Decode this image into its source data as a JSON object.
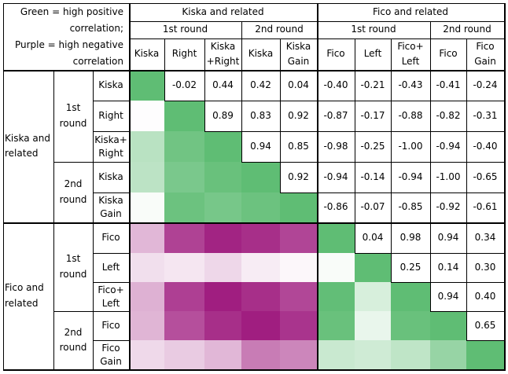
{
  "legend": {
    "line1": "Green = high positive",
    "line2": "correlation;",
    "line3": "Purple = high negative",
    "line4": "correlation"
  },
  "groups": [
    {
      "label": "Kiska and related",
      "rounds": [
        {
          "label": "1st\nround",
          "vars": [
            "Kiska",
            "Right",
            "Kiska\n+Right"
          ]
        },
        {
          "label": "2nd\nround",
          "vars": [
            "Kiska",
            "Kiska\nGain"
          ]
        }
      ]
    },
    {
      "label": "Fico and related",
      "rounds": [
        {
          "label": "1st\nround",
          "vars": [
            "Fico",
            "Left",
            "Fico+\nLeft"
          ]
        },
        {
          "label": "2nd\nround",
          "vars": [
            "Fico",
            "Fico\nGain"
          ]
        }
      ]
    }
  ],
  "rows": [
    {
      "group": "Kiska and\nrelated",
      "round": "1st\nround",
      "label": "Kiska",
      "values": [
        1.0,
        -0.02,
        0.44,
        0.42,
        0.04,
        -0.4,
        -0.21,
        -0.43,
        -0.41,
        -0.24
      ],
      "labels": [
        "",
        "-0.02",
        "0.44",
        "0.42",
        "0.04",
        "-0.40",
        "-0.21",
        "-0.43",
        "-0.41",
        "-0.24"
      ]
    },
    {
      "label": "Right",
      "values": [
        -0.02,
        1.0,
        0.89,
        0.83,
        0.92,
        -0.87,
        -0.17,
        -0.88,
        -0.82,
        -0.31
      ],
      "labels": [
        "",
        "",
        "0.89",
        "0.83",
        "0.92",
        "-0.87",
        "-0.17",
        "-0.88",
        "-0.82",
        "-0.31"
      ]
    },
    {
      "label": "Kiska+\nRight",
      "values": [
        0.44,
        0.89,
        1.0,
        0.94,
        0.85,
        -0.98,
        -0.25,
        -1.0,
        -0.94,
        -0.4
      ],
      "labels": [
        "",
        "",
        "",
        "0.94",
        "0.85",
        "-0.98",
        "-0.25",
        "-1.00",
        "-0.94",
        "-0.40"
      ]
    },
    {
      "round": "2nd\nround",
      "label": "Kiska",
      "values": [
        0.42,
        0.83,
        0.94,
        1.0,
        0.92,
        -0.94,
        -0.14,
        -0.94,
        -1.0,
        -0.65
      ],
      "labels": [
        "",
        "",
        "",
        "",
        "0.92",
        "-0.94",
        "-0.14",
        "-0.94",
        "-1.00",
        "-0.65"
      ]
    },
    {
      "label": "Kiska\nGain",
      "values": [
        0.04,
        0.92,
        0.85,
        0.92,
        1.0,
        -0.86,
        -0.07,
        -0.85,
        -0.92,
        -0.61
      ],
      "labels": [
        "",
        "",
        "",
        "",
        "",
        "-0.86",
        "-0.07",
        "-0.85",
        "-0.92",
        "-0.61"
      ]
    },
    {
      "group": "Fico and\nrelated",
      "round": "1st\nround",
      "label": "Fico",
      "values": [
        -0.4,
        -0.87,
        -0.98,
        -0.94,
        -0.86,
        1.0,
        0.04,
        0.98,
        0.94,
        0.34
      ],
      "labels": [
        "",
        "",
        "",
        "",
        "",
        "",
        "0.04",
        "0.98",
        "0.94",
        "0.34"
      ]
    },
    {
      "label": "Left",
      "values": [
        -0.21,
        -0.17,
        -0.25,
        -0.14,
        -0.07,
        0.04,
        1.0,
        0.25,
        0.14,
        0.3
      ],
      "labels": [
        "",
        "",
        "",
        "",
        "",
        "",
        "",
        "0.25",
        "0.14",
        "0.30"
      ]
    },
    {
      "label": "Fico+\nLeft",
      "values": [
        -0.43,
        -0.88,
        -1.0,
        -0.94,
        -0.85,
        0.98,
        0.25,
        1.0,
        0.94,
        0.4
      ],
      "labels": [
        "",
        "",
        "",
        "",
        "",
        "",
        "",
        "",
        "0.94",
        "0.40"
      ]
    },
    {
      "round": "2nd\nround",
      "label": "Fico",
      "values": [
        -0.41,
        -0.82,
        -0.94,
        -1.0,
        -0.92,
        0.94,
        0.14,
        0.94,
        1.0,
        0.65
      ],
      "labels": [
        "",
        "",
        "",
        "",
        "",
        "",
        "",
        "",
        "",
        "0.65"
      ]
    },
    {
      "label": "Fico\nGain",
      "values": [
        -0.24,
        -0.31,
        -0.4,
        -0.65,
        -0.61,
        0.34,
        0.3,
        0.4,
        0.65,
        1.0
      ],
      "labels": [
        "",
        "",
        "",
        "",
        "",
        "",
        "",
        "",
        "",
        ""
      ]
    }
  ],
  "colors": {
    "positive": "#5fbd74",
    "negative": "#a01e80",
    "text": "#000000",
    "background": "#ffffff"
  }
}
